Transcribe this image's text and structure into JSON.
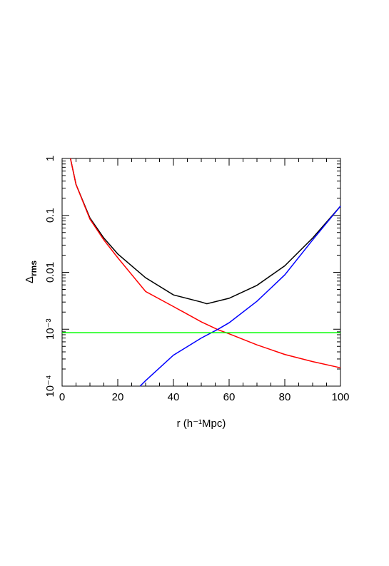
{
  "chart_data": {
    "type": "line",
    "x_label": "r (h⁻¹Mpc)",
    "y_label": "Δrms",
    "xlim": [
      0,
      100
    ],
    "xticks": [
      0,
      20,
      40,
      60,
      80,
      100
    ],
    "ylim": [
      0.0001,
      1
    ],
    "ylog": true,
    "yticks": [
      {
        "value": 0.0001,
        "label": "10⁻⁴"
      },
      {
        "value": 0.001,
        "label": "10⁻³"
      },
      0.01,
      0.1,
      1
    ],
    "series": [
      {
        "color": "#000000",
        "x": [
          3,
          5,
          10,
          15,
          20,
          30,
          40,
          50,
          52,
          60,
          70,
          80,
          90,
          100
        ],
        "values": [
          1.0,
          0.35,
          0.09,
          0.04,
          0.021,
          0.008,
          0.004,
          0.003,
          0.0028,
          0.0035,
          0.0059,
          0.013,
          0.04,
          0.145
        ]
      },
      {
        "color": "#ff0000",
        "x": [
          3,
          5,
          10,
          15,
          20,
          30,
          40,
          50,
          56,
          60,
          70,
          80,
          90,
          100
        ],
        "values": [
          1.0,
          0.35,
          0.086,
          0.037,
          0.018,
          0.0046,
          0.0025,
          0.00135,
          0.00098,
          0.00083,
          0.00053,
          0.00036,
          0.00027,
          0.00021
        ]
      },
      {
        "color": "#0000ff",
        "x": [
          28,
          30,
          40,
          50,
          56,
          60,
          70,
          80,
          90,
          100
        ],
        "values": [
          0.0001,
          0.000125,
          0.00035,
          0.0007,
          0.001,
          0.0013,
          0.0031,
          0.009,
          0.037,
          0.145
        ]
      },
      {
        "color": "#00ff00",
        "x": [
          0,
          100
        ],
        "values": [
          0.00087,
          0.00087
        ]
      }
    ]
  }
}
